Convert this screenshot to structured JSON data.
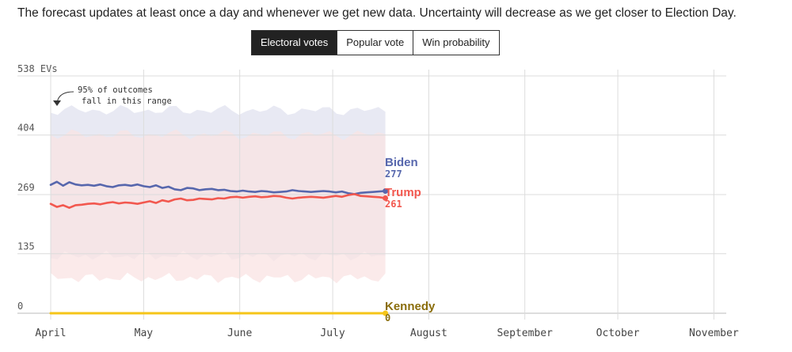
{
  "intro": "The forecast updates at least once a day and whenever we get new data. Uncertainty will decrease as we get closer to Election Day.",
  "tabs": [
    {
      "label": "Electoral votes",
      "active": true
    },
    {
      "label": "Popular vote",
      "active": false
    },
    {
      "label": "Win probability",
      "active": false
    }
  ],
  "chart_data": {
    "type": "line",
    "ylim": [
      0,
      538
    ],
    "yticks": [
      {
        "value": 538,
        "label": "538 EVs"
      },
      {
        "value": 404,
        "label": "404"
      },
      {
        "value": 269,
        "label": "269"
      },
      {
        "value": 135,
        "label": "135"
      },
      {
        "value": 0,
        "label": "0"
      }
    ],
    "xlim": [
      "2024-04-01",
      "2024-11-05"
    ],
    "xticks": [
      {
        "date": "2024-04-01",
        "label": "April"
      },
      {
        "date": "2024-05-01",
        "label": "May"
      },
      {
        "date": "2024-06-01",
        "label": "June"
      },
      {
        "date": "2024-07-01",
        "label": "July"
      },
      {
        "date": "2024-08-01",
        "label": "August"
      },
      {
        "date": "2024-09-01",
        "label": "September"
      },
      {
        "date": "2024-10-01",
        "label": "October"
      },
      {
        "date": "2024-11-01",
        "label": "November"
      }
    ],
    "annotation": [
      "95% of outcomes",
      "fall in this range"
    ],
    "colors": {
      "biden": "#5767ad",
      "trump": "#f2584f",
      "kennedy": "#f5c518",
      "kennedy_label": "#8a6d0b",
      "biden_band": "#e8e9f3",
      "trump_band": "#f9e3e3",
      "overlap_band": "#ead9df",
      "grid": "#dcdcdc"
    },
    "series": [
      {
        "name": "Biden",
        "label_value": "277",
        "color": "#5767ad",
        "x": [
          "2024-04-01",
          "2024-04-03",
          "2024-04-05",
          "2024-04-07",
          "2024-04-09",
          "2024-04-11",
          "2024-04-13",
          "2024-04-15",
          "2024-04-17",
          "2024-04-19",
          "2024-04-21",
          "2024-04-23",
          "2024-04-25",
          "2024-04-27",
          "2024-04-29",
          "2024-05-01",
          "2024-05-03",
          "2024-05-05",
          "2024-05-07",
          "2024-05-09",
          "2024-05-11",
          "2024-05-13",
          "2024-05-15",
          "2024-05-17",
          "2024-05-19",
          "2024-05-21",
          "2024-05-23",
          "2024-05-25",
          "2024-05-27",
          "2024-05-29",
          "2024-05-31",
          "2024-06-02",
          "2024-06-04",
          "2024-06-06",
          "2024-06-08",
          "2024-06-10",
          "2024-06-12",
          "2024-06-14",
          "2024-06-16",
          "2024-06-18",
          "2024-06-20",
          "2024-06-22",
          "2024-06-24",
          "2024-06-26",
          "2024-06-28",
          "2024-06-30",
          "2024-07-02",
          "2024-07-04",
          "2024-07-06",
          "2024-07-08",
          "2024-07-10",
          "2024-07-12",
          "2024-07-14",
          "2024-07-16",
          "2024-07-18"
        ],
        "values": [
          291,
          298,
          289,
          297,
          292,
          290,
          291,
          289,
          292,
          288,
          286,
          290,
          291,
          289,
          292,
          288,
          286,
          290,
          284,
          287,
          281,
          279,
          284,
          283,
          279,
          281,
          282,
          279,
          280,
          277,
          276,
          278,
          276,
          275,
          277,
          276,
          274,
          275,
          276,
          279,
          277,
          276,
          275,
          276,
          277,
          276,
          274,
          276,
          272,
          270,
          273,
          274,
          275,
          276,
          277
        ]
      },
      {
        "name": "Trump",
        "label_value": "261",
        "color": "#f2584f",
        "x": [
          "2024-04-01",
          "2024-04-03",
          "2024-04-05",
          "2024-04-07",
          "2024-04-09",
          "2024-04-11",
          "2024-04-13",
          "2024-04-15",
          "2024-04-17",
          "2024-04-19",
          "2024-04-21",
          "2024-04-23",
          "2024-04-25",
          "2024-04-27",
          "2024-04-29",
          "2024-05-01",
          "2024-05-03",
          "2024-05-05",
          "2024-05-07",
          "2024-05-09",
          "2024-05-11",
          "2024-05-13",
          "2024-05-15",
          "2024-05-17",
          "2024-05-19",
          "2024-05-21",
          "2024-05-23",
          "2024-05-25",
          "2024-05-27",
          "2024-05-29",
          "2024-05-31",
          "2024-06-02",
          "2024-06-04",
          "2024-06-06",
          "2024-06-08",
          "2024-06-10",
          "2024-06-12",
          "2024-06-14",
          "2024-06-16",
          "2024-06-18",
          "2024-06-20",
          "2024-06-22",
          "2024-06-24",
          "2024-06-26",
          "2024-06-28",
          "2024-06-30",
          "2024-07-02",
          "2024-07-04",
          "2024-07-06",
          "2024-07-08",
          "2024-07-10",
          "2024-07-12",
          "2024-07-14",
          "2024-07-16",
          "2024-07-18"
        ],
        "values": [
          248,
          241,
          245,
          239,
          245,
          246,
          248,
          249,
          247,
          250,
          252,
          249,
          251,
          250,
          248,
          251,
          254,
          250,
          256,
          253,
          258,
          260,
          256,
          257,
          260,
          259,
          258,
          261,
          260,
          263,
          264,
          262,
          264,
          265,
          263,
          264,
          266,
          265,
          262,
          260,
          262,
          263,
          264,
          263,
          262,
          264,
          266,
          264,
          268,
          270,
          266,
          265,
          264,
          263,
          261
        ]
      },
      {
        "name": "Kennedy",
        "label_value": "0",
        "color": "#f5c518",
        "x": [
          "2024-04-01",
          "2024-07-18"
        ],
        "values": [
          0,
          0
        ]
      }
    ],
    "bands": [
      {
        "name": "Biden 95% range",
        "lower": 130,
        "upper": 460,
        "color": "#e8e9f3"
      },
      {
        "name": "Trump 95% range",
        "lower": 80,
        "upper": 405,
        "color": "#f9e3e3"
      }
    ]
  }
}
